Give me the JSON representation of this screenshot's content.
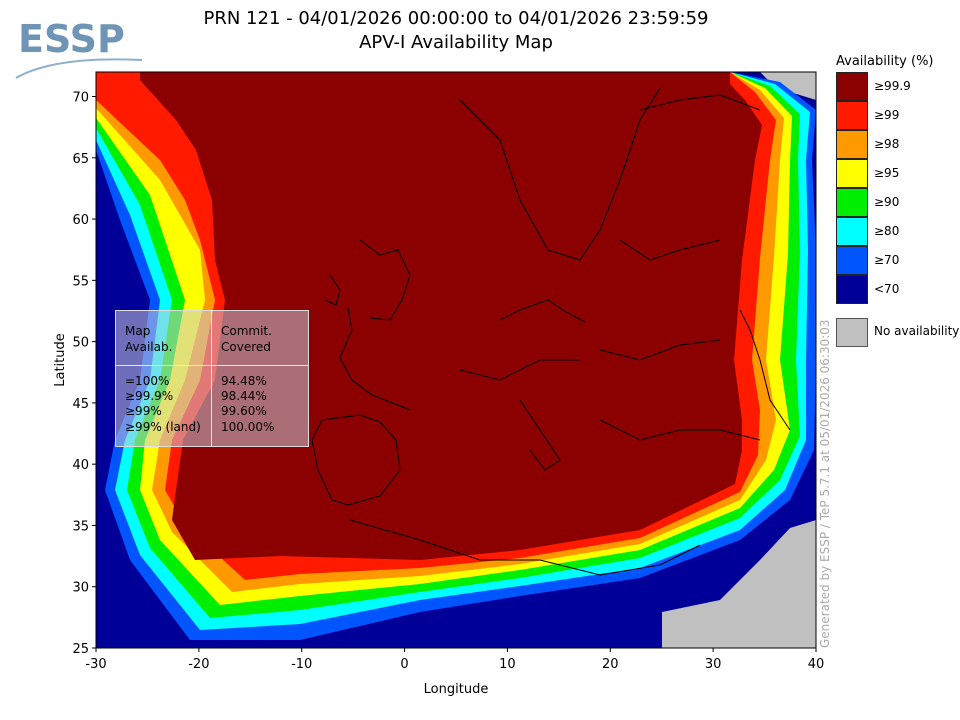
{
  "header": {
    "logo_text": "ESSP",
    "title_line1": "PRN 121 - 04/01/2026 00:00:00 to 04/01/2026 23:59:59",
    "title_line2": "APV-I Availability Map"
  },
  "legend": {
    "title": "Availability (%)",
    "items": [
      {
        "label": "≥99.9",
        "color": "#8b0000"
      },
      {
        "label": "≥99",
        "color": "#ff1a00"
      },
      {
        "label": "≥98",
        "color": "#ff9900"
      },
      {
        "label": "≥95",
        "color": "#ffff00"
      },
      {
        "label": "≥90",
        "color": "#00ee00"
      },
      {
        "label": "≥80",
        "color": "#00ffff"
      },
      {
        "label": "≥70",
        "color": "#0055ff"
      },
      {
        "label": "<70",
        "color": "#000099"
      }
    ],
    "no_availability": {
      "label": "No availability",
      "color": "#c0c0c0"
    }
  },
  "stats_table": {
    "header_left": [
      "Map",
      "Availab."
    ],
    "header_right": [
      "Commit.",
      "Covered"
    ],
    "rows": [
      {
        "level": "=100%",
        "covered": "94.48%"
      },
      {
        "level": "≥99.9%",
        "covered": "98.44%"
      },
      {
        "level": "≥99%",
        "covered": "99.60%"
      },
      {
        "level": "≥99% (land)",
        "covered": "100.00%"
      }
    ]
  },
  "credit": "Generated by ESSP / TeP 5.7.1 at 05/01/2026 06:30:03",
  "chart_data": {
    "type": "heatmap",
    "title": "APV-I Availability Map",
    "xlabel": "Longitude",
    "ylabel": "Latitude",
    "xlim": [
      -30,
      40
    ],
    "ylim": [
      25,
      72
    ],
    "xticks": [
      -30,
      -20,
      -10,
      0,
      10,
      20,
      30,
      40
    ],
    "yticks": [
      25,
      30,
      35,
      40,
      45,
      50,
      55,
      60,
      65,
      70
    ],
    "legend_position": "right"
  }
}
